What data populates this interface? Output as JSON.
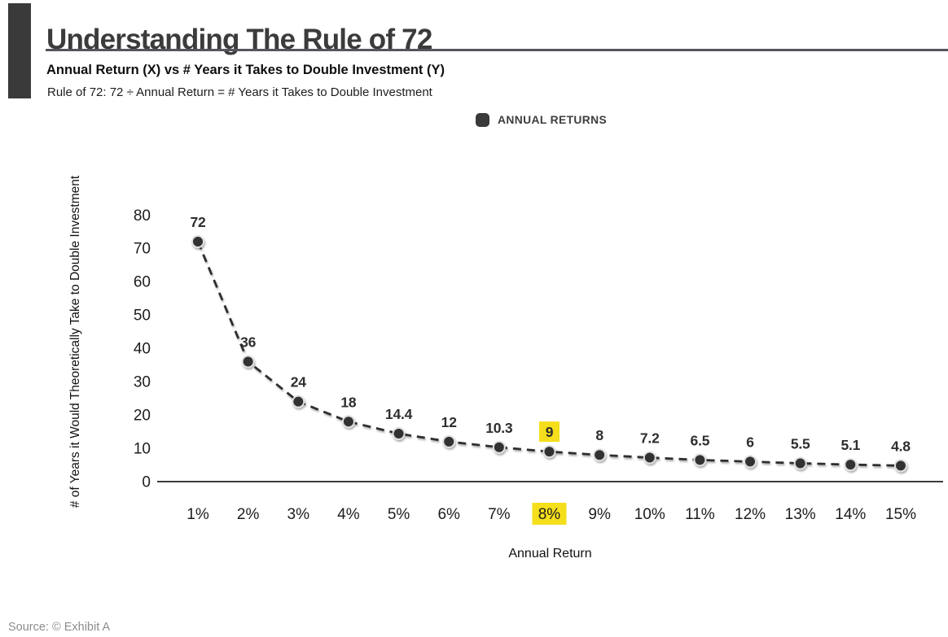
{
  "header": {
    "title": "Understanding The Rule of 72",
    "subtitle": "Annual Return (X) vs # Years it Takes to Double Investment (Y)",
    "formula_note": "Rule of 72: 72 ÷ Annual Return = # Years it Takes to Double Investment"
  },
  "legend": {
    "label": "ANNUAL RETURNS"
  },
  "footer": {
    "source_note": "Source: © Exhibit A"
  },
  "colors": {
    "accent_dark": "#3a3a3a",
    "highlight_yellow": "#f5de1b",
    "title_text": "#3b3b3b",
    "divider": "#55555c",
    "source_text": "#8d8d8d"
  },
  "chart_data": {
    "type": "line",
    "title": "Understanding The Rule of 72",
    "categories": [
      "1%",
      "2%",
      "3%",
      "4%",
      "5%",
      "6%",
      "7%",
      "8%",
      "9%",
      "10%",
      "11%",
      "12%",
      "13%",
      "14%",
      "15%"
    ],
    "values": [
      72,
      36,
      24,
      18,
      14.4,
      12,
      10.3,
      9,
      8,
      7.2,
      6.5,
      6,
      5.5,
      5.1,
      4.8
    ],
    "point_labels": [
      "72",
      "36",
      "24",
      "18",
      "14.4",
      "12",
      "10.3",
      "9",
      "8",
      "7.2",
      "6.5",
      "6",
      "5.5",
      "5.1",
      "4.8"
    ],
    "highlighted_category": "8%",
    "highlighted_point_label": "9",
    "xlabel": "Annual Return",
    "ylabel": "# of Years it Would Theoretically Take to Double Investment",
    "yticks": [
      0,
      10,
      20,
      30,
      40,
      50,
      60,
      70,
      80
    ],
    "ylim": [
      0,
      88
    ],
    "grid": false,
    "line_style": "dashed",
    "legend_entries": [
      "ANNUAL RETURNS"
    ],
    "legend_position": "top",
    "colors": {
      "point": "#333333",
      "point_ring": "#e0e0e0",
      "line": "#2d2d2d",
      "axis": "#3e3e3e",
      "highlight": "#f5de1b",
      "data_label": "#2e2e2e",
      "tick_label": "#1d1d1d"
    }
  }
}
